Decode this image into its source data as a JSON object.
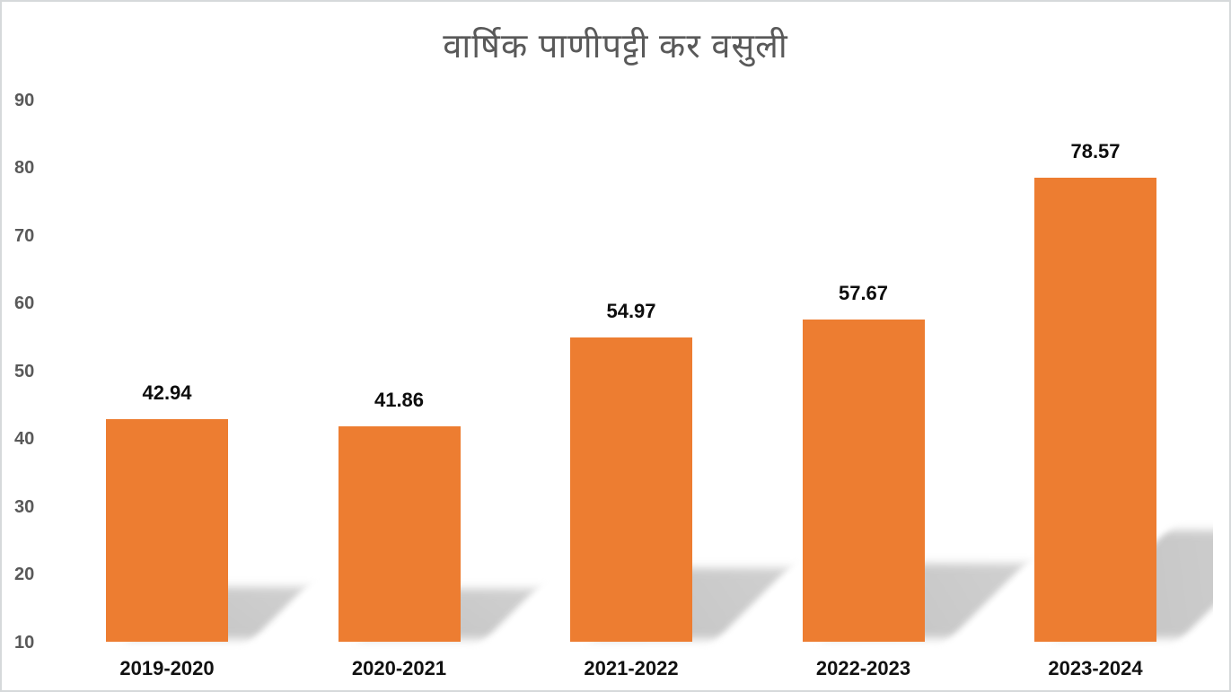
{
  "chart_data": {
    "type": "bar",
    "title": "वार्षिक पाणीपट्टी कर वसुली",
    "categories": [
      "2019-2020",
      "2020-2021",
      "2021-2022",
      "2022-2023",
      "2023-2024"
    ],
    "values": [
      42.94,
      41.86,
      54.97,
      57.67,
      78.57
    ],
    "data_labels": [
      "42.94",
      "41.86",
      "54.97",
      "57.67",
      "78.57"
    ],
    "xlabel": "",
    "ylabel": "",
    "y_axis": {
      "min": 10,
      "max": 90,
      "step": 10,
      "tick_labels": [
        "90",
        "80",
        "70",
        "60",
        "50",
        "40",
        "30",
        "20",
        "10"
      ]
    },
    "grid": false,
    "legend": false,
    "colors": {
      "bar": "#ED7D31",
      "shadow": "#c6c6c6",
      "title": "#595959",
      "y_tick_label": "#595959",
      "x_tick_label": "#111111",
      "value_label": "#0d0d0d",
      "frame_border": "#d6d9db",
      "background": "#ffffff"
    },
    "style_notes": "3D perspective diagonal shadows cast to the lower right of each bar"
  }
}
